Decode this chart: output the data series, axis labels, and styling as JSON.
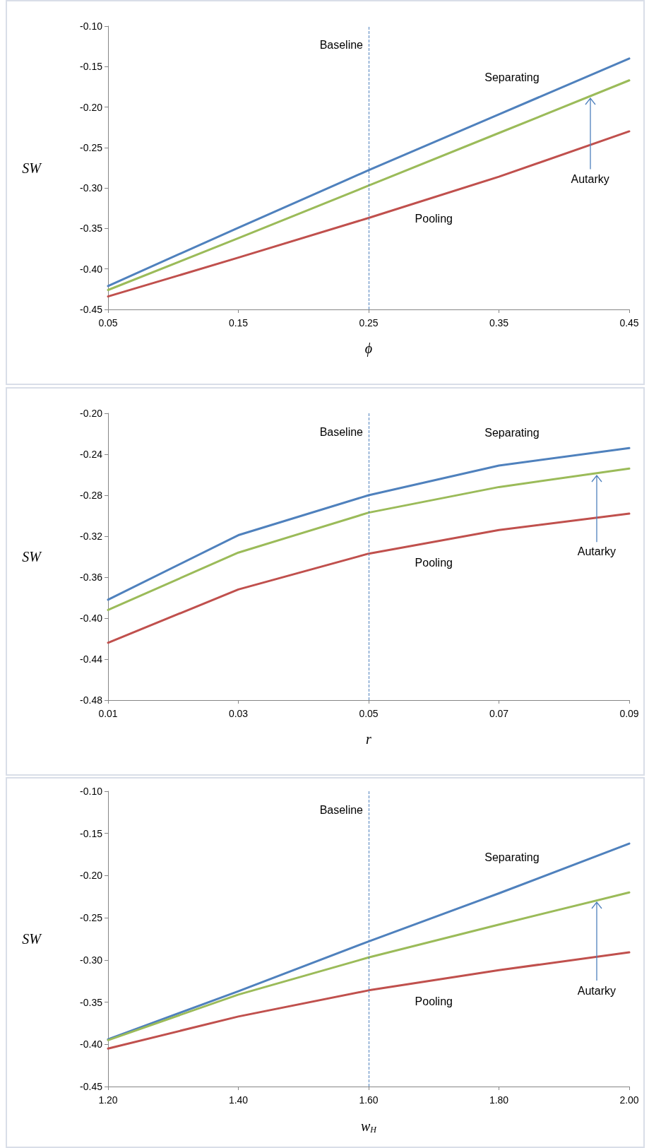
{
  "chart_data": [
    {
      "type": "line",
      "xlabel": "ϕ",
      "ylabel": "SW",
      "x": [
        0.05,
        0.15,
        0.25,
        0.35,
        0.45
      ],
      "xlim": [
        0.05,
        0.45
      ],
      "xticks": [
        0.05,
        0.15,
        0.25,
        0.35,
        0.45
      ],
      "ylim": [
        -0.45,
        -0.1
      ],
      "yticks": [
        -0.45,
        {
          "value": -0.4,
          "label": "-0.40"
        },
        -0.35,
        {
          "value": -0.3,
          "label": "-0.30"
        },
        -0.25,
        {
          "value": -0.2,
          "label": "-0.20"
        },
        -0.15,
        {
          "value": -0.1,
          "label": "-0.10"
        }
      ],
      "series": [
        {
          "name": "Separating",
          "color": "#4f81bd",
          "values": [
            -0.421,
            -0.349,
            -0.278,
            -0.209,
            -0.14
          ]
        },
        {
          "color": "#9bbb59",
          "values": [
            -0.426,
            -0.362,
            -0.297,
            -0.232,
            -0.167
          ]
        },
        {
          "name": "Pooling",
          "color": "#c0504d",
          "values": [
            -0.434,
            -0.386,
            -0.337,
            -0.286,
            -0.23
          ]
        }
      ],
      "ref_lines": [
        {
          "axis": "x",
          "value": 0.25,
          "label": "Baseline",
          "color": "#4f81bd",
          "line_style": "dashed"
        }
      ],
      "annotations": [
        {
          "text": "Autarky",
          "x": 0.42,
          "y": -0.187
        }
      ],
      "legend": false,
      "grid": false,
      "marker": "none",
      "line_style": "solid"
    },
    {
      "type": "line",
      "xlabel": "r",
      "ylabel": "SW",
      "x": [
        0.01,
        0.03,
        0.05,
        0.07,
        0.09
      ],
      "xlim": [
        0.01,
        0.09
      ],
      "xticks": [
        0.01,
        0.03,
        0.05,
        0.07,
        0.09
      ],
      "ylim": [
        -0.48,
        -0.2
      ],
      "yticks": [
        -0.48,
        -0.44,
        {
          "value": -0.4,
          "label": "-0.40"
        },
        -0.36,
        -0.32,
        -0.28,
        -0.24,
        {
          "value": -0.2,
          "label": "-0.20"
        }
      ],
      "series": [
        {
          "name": "Separating",
          "color": "#4f81bd",
          "values": [
            -0.382,
            -0.319,
            -0.28,
            -0.251,
            -0.234
          ]
        },
        {
          "color": "#9bbb59",
          "values": [
            -0.392,
            -0.336,
            -0.297,
            -0.272,
            -0.254
          ]
        },
        {
          "name": "Pooling",
          "color": "#c0504d",
          "values": [
            -0.424,
            -0.372,
            -0.337,
            -0.314,
            -0.298
          ]
        }
      ],
      "ref_lines": [
        {
          "axis": "x",
          "value": 0.05,
          "label": "Baseline",
          "color": "#4f81bd",
          "line_style": "dashed"
        }
      ],
      "annotations": [
        {
          "text": "Autarky",
          "x": 0.085,
          "y": -0.259
        }
      ],
      "legend": false,
      "grid": false,
      "marker": "none",
      "line_style": "solid"
    },
    {
      "type": "line",
      "xlabel": "w$_{H}$",
      "ylabel": "SW",
      "x": [
        1.2,
        1.4,
        1.6,
        1.8,
        2.0
      ],
      "xlim": [
        1.2,
        2.0
      ],
      "xticks": [
        {
          "value": 1.2,
          "label": "1.20"
        },
        {
          "value": 1.4,
          "label": "1.40"
        },
        {
          "value": 1.6,
          "label": "1.60"
        },
        {
          "value": 1.8,
          "label": "1.80"
        },
        {
          "value": 2.0,
          "label": "2.00"
        }
      ],
      "ylim": [
        -0.45,
        -0.1
      ],
      "yticks": [
        -0.45,
        {
          "value": -0.4,
          "label": "-0.40"
        },
        -0.35,
        {
          "value": -0.3,
          "label": "-0.30"
        },
        -0.25,
        {
          "value": -0.2,
          "label": "-0.20"
        },
        -0.15,
        {
          "value": -0.1,
          "label": "-0.10"
        }
      ],
      "series": [
        {
          "name": "Separating",
          "color": "#4f81bd",
          "values": [
            -0.394,
            -0.337,
            -0.278,
            -0.221,
            -0.162
          ]
        },
        {
          "color": "#9bbb59",
          "values": [
            -0.395,
            -0.341,
            -0.297,
            -0.258,
            -0.22
          ]
        },
        {
          "name": "Pooling",
          "color": "#c0504d",
          "values": [
            -0.405,
            -0.367,
            -0.336,
            -0.312,
            -0.291
          ]
        }
      ],
      "ref_lines": [
        {
          "axis": "x",
          "value": 1.6,
          "label": "Baseline",
          "color": "#4f81bd",
          "line_style": "dashed"
        }
      ],
      "annotations": [
        {
          "text": "Autarky",
          "x": 1.95,
          "y": -0.23
        }
      ],
      "legend": false,
      "grid": false,
      "marker": "none",
      "line_style": "solid"
    }
  ]
}
